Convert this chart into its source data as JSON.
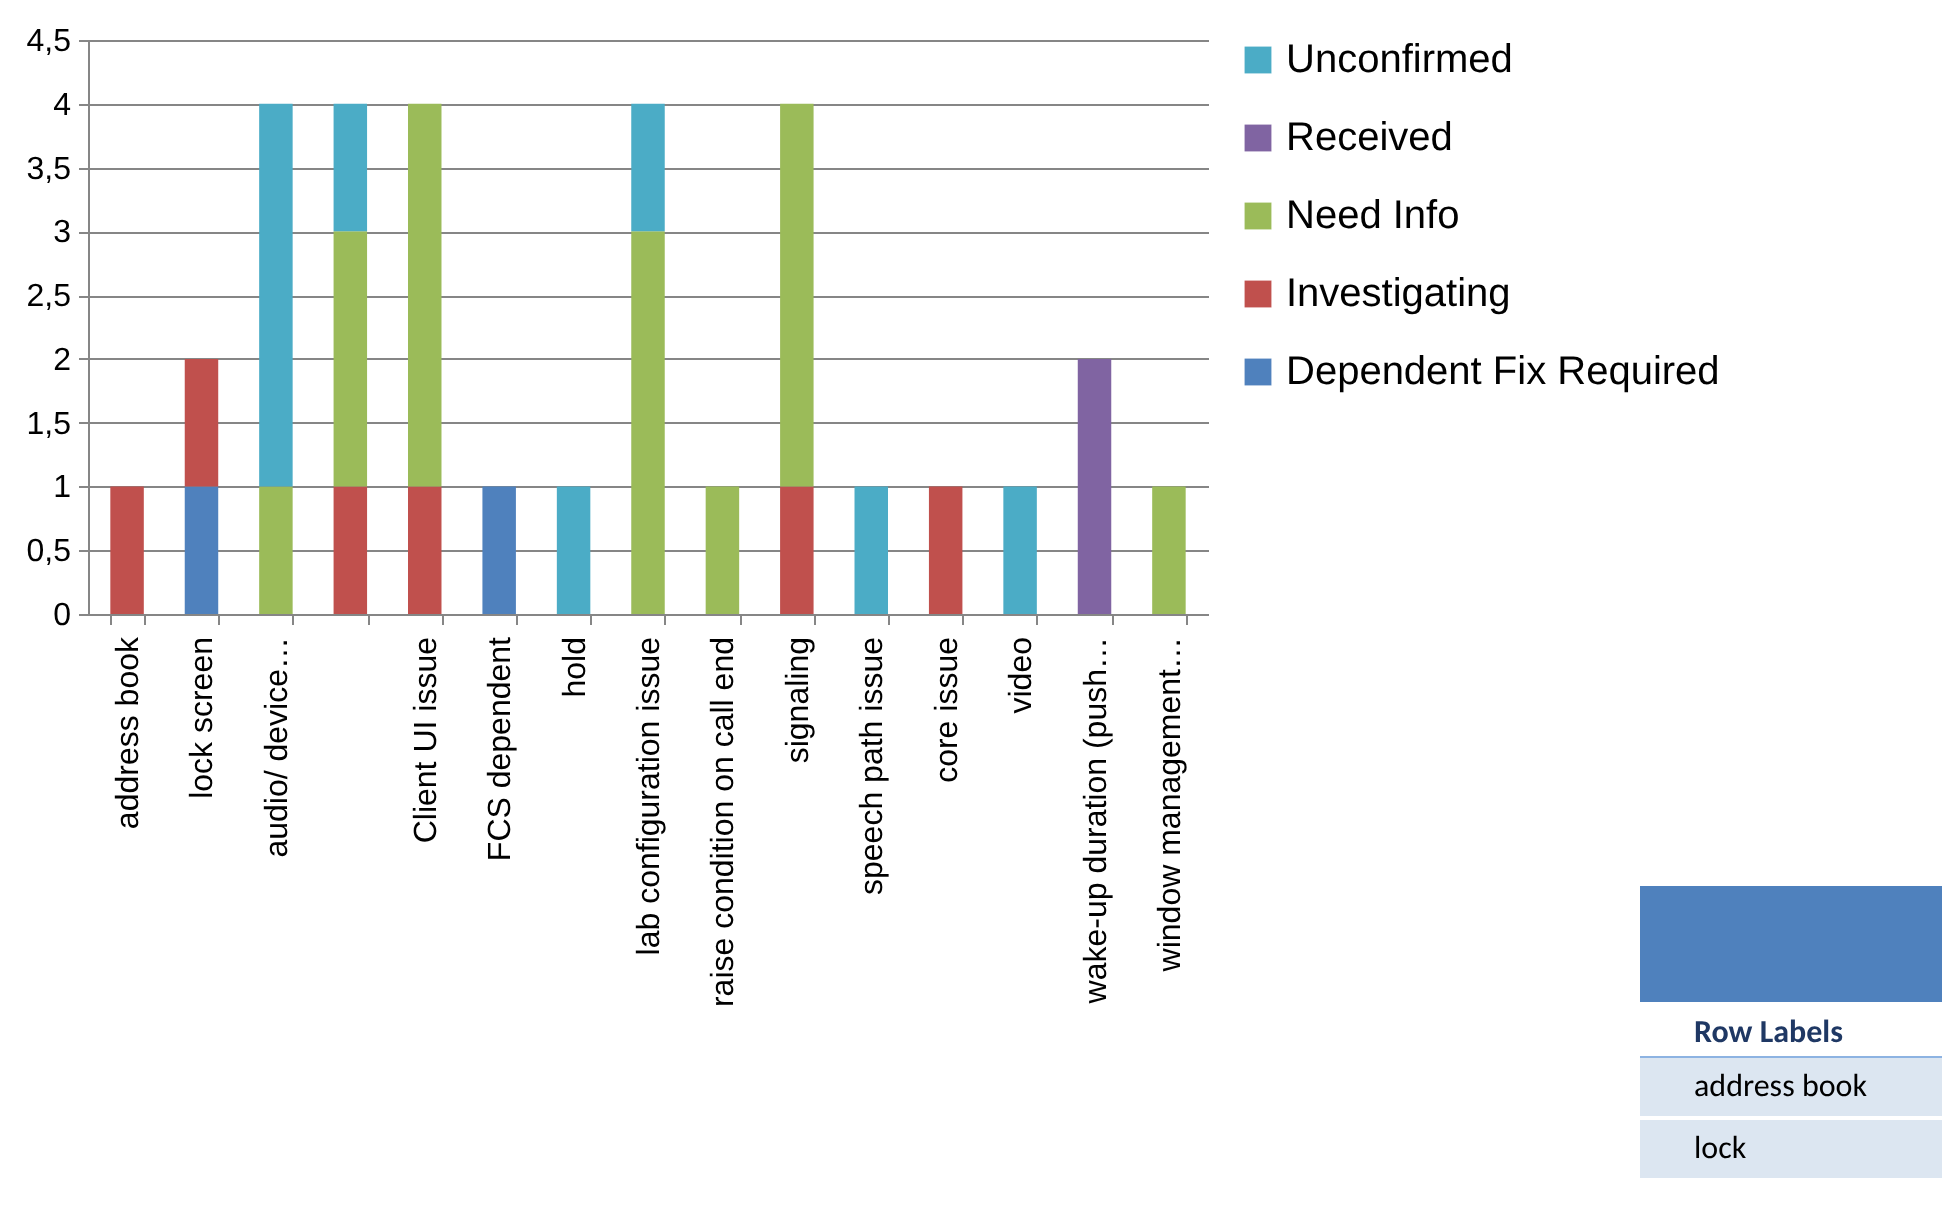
{
  "chart_data": {
    "type": "bar",
    "stacked": true,
    "categories": [
      "address book",
      "lock screen",
      "audio/ device…",
      null,
      "Client UI issue",
      "FCS dependent",
      "hold",
      "lab configuration issue",
      "raise condition on call end",
      "signaling",
      "speech path issue",
      "core issue",
      "video",
      "wake-up duration (push…",
      "window management…"
    ],
    "series": [
      {
        "name": "Dependent Fix Required",
        "color": "#4f81bd",
        "values": [
          null,
          1,
          null,
          null,
          null,
          1,
          null,
          null,
          null,
          null,
          null,
          null,
          null,
          null,
          null
        ]
      },
      {
        "name": "Investigating",
        "color": "#c0504d",
        "values": [
          1,
          1,
          null,
          1,
          1,
          null,
          null,
          null,
          null,
          1,
          null,
          1,
          null,
          null,
          null
        ]
      },
      {
        "name": "Need Info",
        "color": "#9bbb59",
        "values": [
          null,
          null,
          1,
          2,
          3,
          null,
          null,
          3,
          1,
          3,
          null,
          null,
          null,
          null,
          1
        ]
      },
      {
        "name": "Received",
        "color": "#8064a2",
        "values": [
          null,
          null,
          null,
          null,
          null,
          null,
          null,
          null,
          null,
          null,
          null,
          null,
          null,
          2,
          null
        ]
      },
      {
        "name": "Unconfirmed",
        "color": "#4bacc6",
        "values": [
          null,
          null,
          3,
          1,
          null,
          null,
          1,
          1,
          null,
          null,
          1,
          null,
          1,
          null,
          null
        ]
      }
    ],
    "ylim": [
      0,
      4.5
    ],
    "yticks": [
      0,
      {
        "value": 0.5,
        "label": "0,5"
      },
      1,
      {
        "value": 1.5,
        "label": "1,5"
      },
      2,
      {
        "value": 2.5,
        "label": "2,5"
      },
      3,
      {
        "value": 3.5,
        "label": "3,5"
      },
      4,
      {
        "value": 4.5,
        "label": "4,5"
      }
    ],
    "grid": "y",
    "legend": "right",
    "annotations": [
      "Row Labels",
      "address book",
      "lock"
    ]
  }
}
